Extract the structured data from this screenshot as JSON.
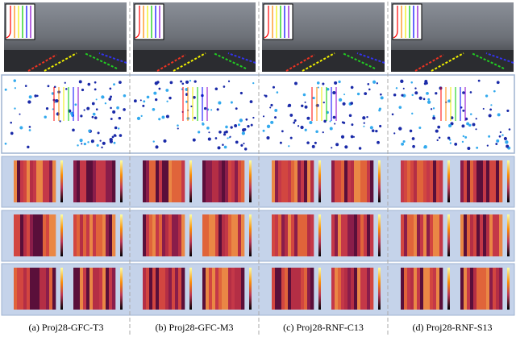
{
  "captions": [
    "(a) Proj28-GFC-T3",
    "(b) Proj28-GFC-M3",
    "(c) Proj28-RNF-C13",
    "(d) Proj28-RNF-S13"
  ]
}
